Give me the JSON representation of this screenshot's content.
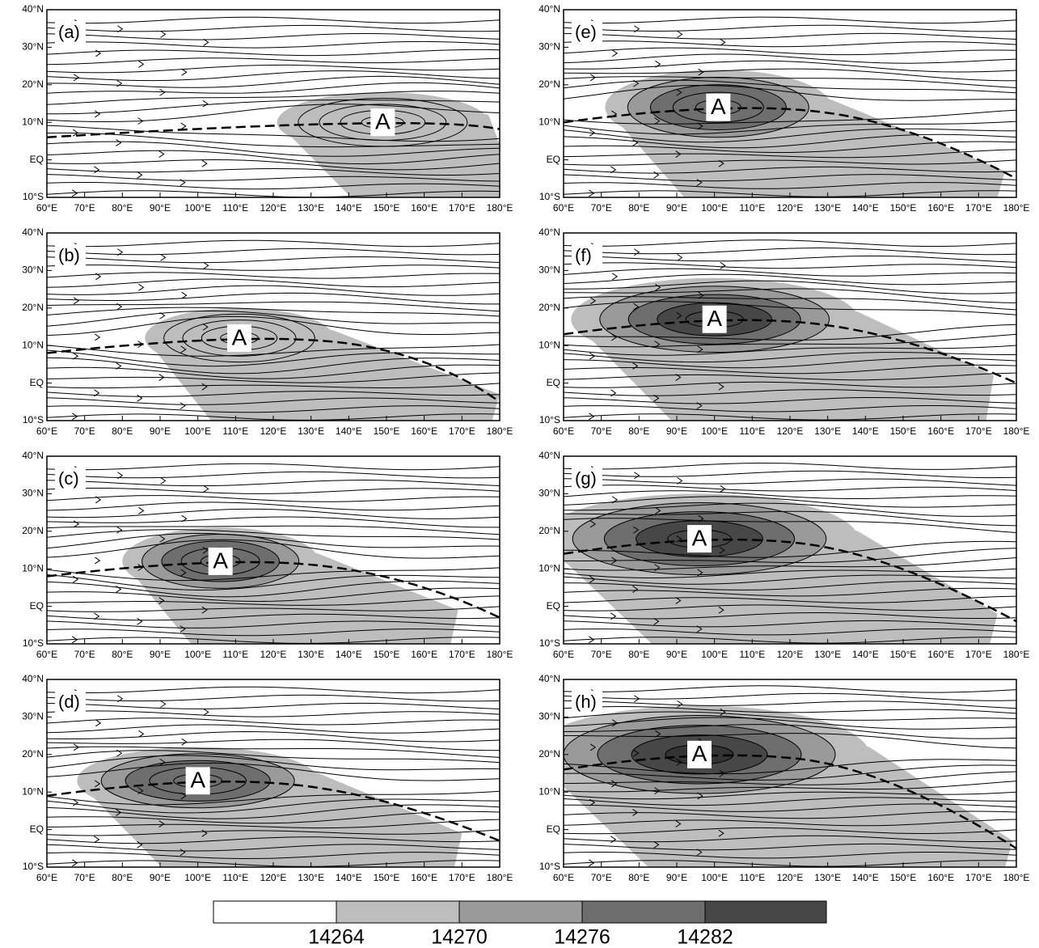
{
  "panels": [
    {
      "label": "(a)",
      "center_label": "A"
    },
    {
      "label": "(e)",
      "center_label": "A"
    },
    {
      "label": "(b)",
      "center_label": "A"
    },
    {
      "label": "(f)",
      "center_label": "A"
    },
    {
      "label": "(c)",
      "center_label": "A"
    },
    {
      "label": "(g)",
      "center_label": "A"
    },
    {
      "label": "(d)",
      "center_label": "A"
    },
    {
      "label": "(h)",
      "center_label": "A"
    }
  ],
  "lon_ticks": [
    "60°E",
    "70°E",
    "80°E",
    "90°E",
    "100°E",
    "110°E",
    "120°E",
    "130°E",
    "140°E",
    "150°E",
    "160°E",
    "170°E",
    "180°E"
  ],
  "lat_ticks": [
    "10°S",
    "EQ",
    "10°N",
    "20°N",
    "30°N",
    "40°N"
  ],
  "colorbar": {
    "labels": [
      14264,
      14270,
      14276,
      14282
    ]
  }
}
